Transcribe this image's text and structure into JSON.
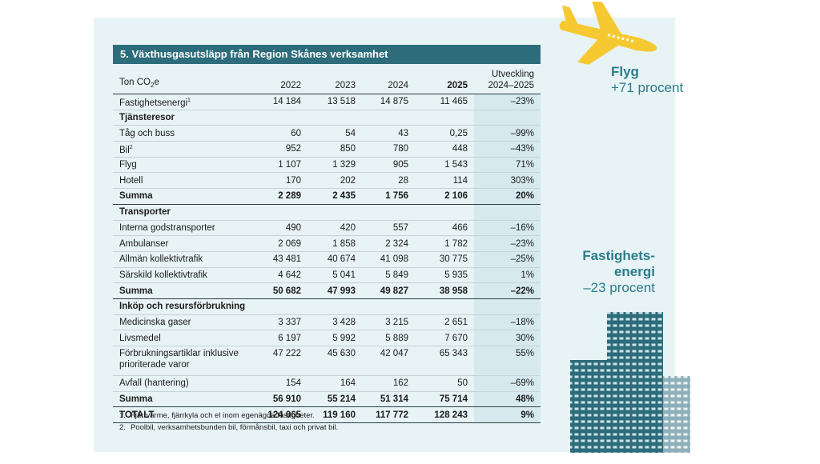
{
  "table": {
    "title": "5. Växthusgasutsläpp från Region Skånes verksamhet",
    "unit": {
      "prefix": "Ton CO",
      "sub": "2",
      "suffix": "e"
    },
    "columns": [
      "2022",
      "2023",
      "2024",
      "2025"
    ],
    "change_header": [
      "Utveckling",
      "2024–2025"
    ],
    "rows": [
      {
        "label": "Fastighetsenergi",
        "note": "1",
        "values": [
          "14 184",
          "13 518",
          "14 875",
          "11 465",
          "–23%"
        ]
      },
      {
        "label": "Tjänsteresor",
        "style": "section"
      },
      {
        "label": "Tåg och buss",
        "values": [
          "60",
          "54",
          "43",
          "0,25",
          "–99%"
        ]
      },
      {
        "label": "Bil",
        "note": "2",
        "values": [
          "952",
          "850",
          "780",
          "448",
          "–43%"
        ]
      },
      {
        "label": "Flyg",
        "values": [
          "1 107",
          "1 329",
          "905",
          "1 543",
          "71%"
        ]
      },
      {
        "label": "Hotell",
        "values": [
          "170",
          "202",
          "28",
          "114",
          "303%"
        ]
      },
      {
        "label": "Summa",
        "style": "sum",
        "values": [
          "2 289",
          "2 435",
          "1 756",
          "2 106",
          "20%"
        ]
      },
      {
        "label": "Transporter",
        "style": "section"
      },
      {
        "label": "Interna godstransporter",
        "values": [
          "490",
          "420",
          "557",
          "466",
          "–16%"
        ]
      },
      {
        "label": "Ambulanser",
        "values": [
          "2 069",
          "1 858",
          "2 324",
          "1 782",
          "–23%"
        ]
      },
      {
        "label": "Allmän kollektivtrafik",
        "values": [
          "43 481",
          "40 674",
          "41 098",
          "30 775",
          "–25%"
        ]
      },
      {
        "label": "Särskild kollektivtrafik",
        "values": [
          "4 642",
          "5 041",
          "5 849",
          "5 935",
          "1%"
        ]
      },
      {
        "label": "Summa",
        "style": "sum",
        "values": [
          "50 682",
          "47 993",
          "49 827",
          "38 958",
          "–22%"
        ]
      },
      {
        "label": "Inköp och resursförbrukning",
        "style": "section"
      },
      {
        "label": "Medicinska gaser",
        "values": [
          "3 337",
          "3 428",
          "3 215",
          "2 651",
          "–18%"
        ]
      },
      {
        "label": "Livsmedel",
        "values": [
          "6 197",
          "5 992",
          "5 889",
          "7 670",
          "30%"
        ]
      },
      {
        "label": "Förbrukningsartiklar inklusive prioriterade varor",
        "values": [
          "47 222",
          "45 630",
          "42 047",
          "65 343",
          "55%"
        ]
      },
      {
        "label": "Avfall (hantering)",
        "values": [
          "154",
          "164",
          "162",
          "50",
          "–69%"
        ]
      },
      {
        "label": "Summa",
        "style": "sum",
        "values": [
          "56 910",
          "55 214",
          "51 314",
          "75 714",
          "48%"
        ]
      },
      {
        "label": "TOTALT",
        "style": "sum",
        "values": [
          "124 065",
          "119 160",
          "117 772",
          "128 243",
          "9%"
        ]
      }
    ],
    "footnotes": [
      {
        "number": "1.",
        "text": "Fjärrvärme, fjärrkyla och el inom egenägda fastigheter."
      },
      {
        "number": "2.",
        "text": "Poolbil, verksamhetsbunden bil, förmånsbil, taxi och privat bil."
      }
    ]
  },
  "callouts": {
    "flight": {
      "title": "Flyg",
      "text": "+71 procent"
    },
    "property": {
      "title_lines": [
        "Fastighets-",
        "energi"
      ],
      "text": "–23 procent"
    }
  }
}
